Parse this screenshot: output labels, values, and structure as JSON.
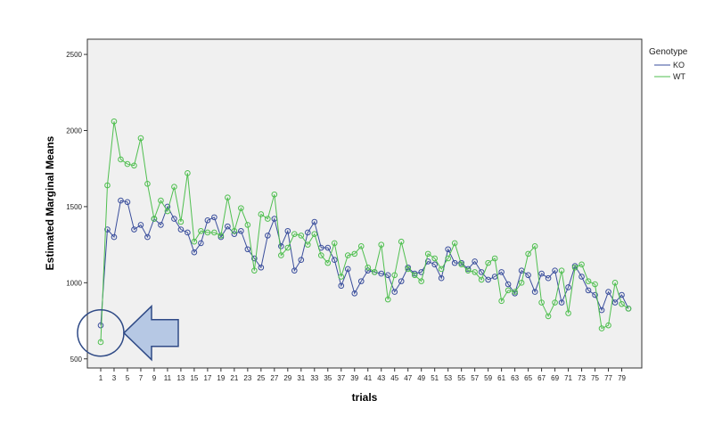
{
  "chart_data": {
    "type": "line",
    "title": "",
    "xlabel": "trials",
    "ylabel": "Estimated Marginal Means",
    "ylim": [
      440,
      2600
    ],
    "yticks": [
      500,
      1000,
      1500,
      2000,
      2500
    ],
    "yticklabels": [
      "500",
      "1000",
      "1500",
      "2000",
      "2500"
    ],
    "xlim": [
      -1,
      82
    ],
    "xticks": [
      1,
      3,
      5,
      7,
      9,
      11,
      13,
      15,
      17,
      19,
      21,
      23,
      25,
      27,
      29,
      31,
      33,
      35,
      37,
      39,
      41,
      43,
      45,
      47,
      49,
      51,
      53,
      55,
      57,
      59,
      61,
      63,
      65,
      67,
      69,
      71,
      73,
      75,
      77,
      79
    ],
    "xticklabels": [
      "1",
      "3",
      "5",
      "7",
      "9",
      "11",
      "13",
      "15",
      "17",
      "19",
      "21",
      "23",
      "25",
      "27",
      "29",
      "31",
      "33",
      "35",
      "37",
      "39",
      "41",
      "43",
      "45",
      "47",
      "49",
      "51",
      "53",
      "55",
      "57",
      "59",
      "61",
      "63",
      "65",
      "67",
      "69",
      "71",
      "73",
      "75",
      "77",
      "79"
    ],
    "grid": false,
    "legend": {
      "title": "Genotype",
      "placement": "right"
    },
    "x": [
      1,
      2,
      3,
      4,
      5,
      6,
      7,
      8,
      9,
      10,
      11,
      12,
      13,
      14,
      15,
      16,
      17,
      18,
      19,
      20,
      21,
      22,
      23,
      24,
      25,
      26,
      27,
      28,
      29,
      30,
      31,
      32,
      33,
      34,
      35,
      36,
      37,
      38,
      39,
      40,
      41,
      42,
      43,
      44,
      45,
      46,
      47,
      48,
      49,
      50,
      51,
      52,
      53,
      54,
      55,
      56,
      57,
      58,
      59,
      60,
      61,
      62,
      63,
      64,
      65,
      66,
      67,
      68,
      69,
      70,
      71,
      72,
      73,
      74,
      75,
      76,
      77,
      78,
      79,
      80
    ],
    "series": [
      {
        "name": "KO",
        "color": "#3a4e9c",
        "values": [
          720,
          1350,
          1300,
          1540,
          1530,
          1350,
          1380,
          1300,
          1420,
          1380,
          1500,
          1420,
          1350,
          1330,
          1200,
          1260,
          1410,
          1430,
          1300,
          1370,
          1320,
          1340,
          1220,
          1160,
          1100,
          1310,
          1420,
          1240,
          1340,
          1080,
          1150,
          1330,
          1400,
          1230,
          1230,
          1150,
          980,
          1090,
          930,
          1010,
          1080,
          1070,
          1060,
          1050,
          940,
          1010,
          1100,
          1060,
          1070,
          1140,
          1120,
          1030,
          1220,
          1130,
          1130,
          1090,
          1140,
          1070,
          1020,
          1040,
          1070,
          990,
          930,
          1080,
          1050,
          940,
          1060,
          1030,
          1080,
          870,
          970,
          1110,
          1040,
          950,
          920,
          820,
          940,
          870,
          920,
          830
        ]
      },
      {
        "name": "WT",
        "color": "#4fbf4f",
        "values": [
          610,
          1640,
          2060,
          1810,
          1780,
          1770,
          1950,
          1650,
          1420,
          1540,
          1470,
          1630,
          1400,
          1720,
          1270,
          1340,
          1330,
          1330,
          1310,
          1560,
          1340,
          1490,
          1380,
          1080,
          1450,
          1420,
          1580,
          1180,
          1230,
          1320,
          1310,
          1250,
          1320,
          1180,
          1130,
          1260,
          1040,
          1180,
          1190,
          1240,
          1100,
          1070,
          1250,
          890,
          1050,
          1270,
          1090,
          1050,
          1010,
          1190,
          1160,
          1090,
          1160,
          1260,
          1120,
          1080,
          1070,
          1020,
          1130,
          1160,
          880,
          950,
          940,
          1000,
          1190,
          1240,
          870,
          780,
          870,
          1080,
          800,
          1100,
          1120,
          1010,
          990,
          700,
          720,
          1000,
          860,
          830
        ]
      }
    ],
    "annotations": [
      {
        "type": "circle",
        "x": 1,
        "y": 670
      },
      {
        "type": "arrow",
        "direction": "left",
        "x": 1,
        "y": 670
      }
    ]
  },
  "colors": {
    "plot_background": "#f0f0f0",
    "page_background": "#ffffff",
    "annotation_stroke": "#2f4a86",
    "annotation_fill": "#b6c8e4"
  }
}
